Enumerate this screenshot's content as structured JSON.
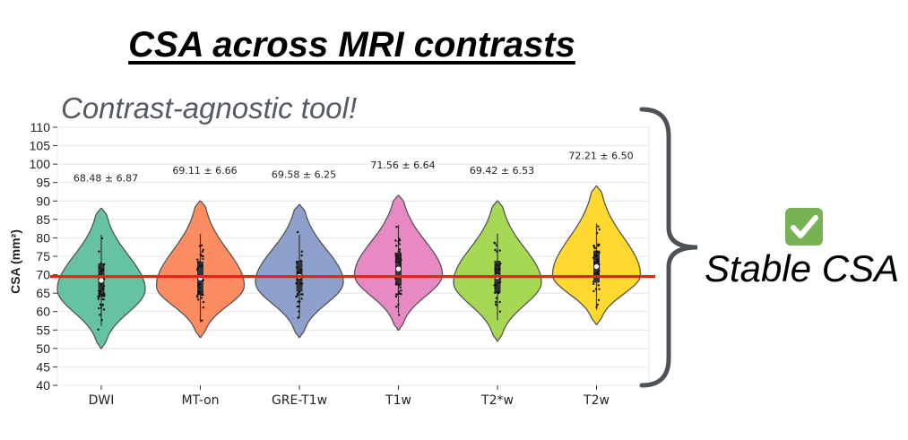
{
  "title": "CSA across MRI contrasts",
  "subtitle": "Contrast-agnostic tool!",
  "conclusion": "Stable CSA",
  "check_icon": "check-mark-icon",
  "colors": {
    "reference_line": "#e8231c",
    "brace": "#4d5258",
    "check": "#77b255"
  },
  "chart_data": {
    "type": "violin",
    "ylabel": "CSA (mm²)",
    "ylim": [
      40,
      110
    ],
    "yticks": [
      40,
      45,
      50,
      55,
      60,
      65,
      70,
      75,
      80,
      85,
      90,
      95,
      100,
      105,
      110
    ],
    "reference_line": 69.5,
    "grid": true,
    "categories": [
      "DWI",
      "MT-on",
      "GRE-T1w",
      "T1w",
      "T2*w",
      "T2w"
    ],
    "series": [
      {
        "label": "DWI",
        "mean": 68.48,
        "std": 6.87,
        "annotation": "68.48 ± 6.87",
        "min": 50,
        "max": 88,
        "mode": 66,
        "color": "#66c2a5"
      },
      {
        "label": "MT-on",
        "mean": 69.11,
        "std": 6.66,
        "annotation": "69.11 ± 6.66",
        "min": 53,
        "max": 90,
        "mode": 67,
        "color": "#fc8d62"
      },
      {
        "label": "GRE-T1w",
        "mean": 69.58,
        "std": 6.25,
        "annotation": "69.58 ± 6.25",
        "min": 53,
        "max": 89,
        "mode": 68,
        "color": "#8da0cb"
      },
      {
        "label": "T1w",
        "mean": 71.56,
        "std": 6.64,
        "annotation": "71.56 ± 6.64",
        "min": 55,
        "max": 91.5,
        "mode": 70,
        "color": "#e78ac3"
      },
      {
        "label": "T2*w",
        "mean": 69.42,
        "std": 6.53,
        "annotation": "69.42 ± 6.53",
        "min": 52,
        "max": 90,
        "mode": 68,
        "color": "#a6d854"
      },
      {
        "label": "T2w",
        "mean": 72.21,
        "std": 6.5,
        "annotation": "72.21 ± 6.50",
        "min": 56.5,
        "max": 94,
        "mode": 70,
        "color": "#ffd92f"
      }
    ]
  }
}
